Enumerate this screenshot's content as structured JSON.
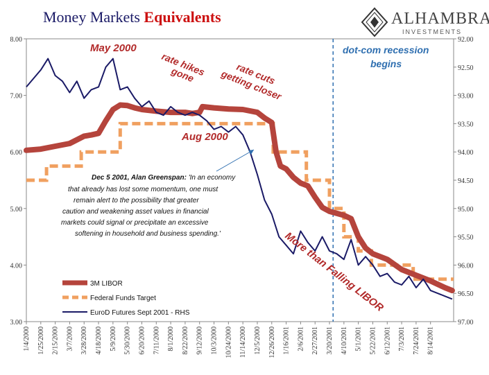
{
  "header": {
    "title_main": "Money Markets ",
    "title_accent": "Equivalents",
    "logo_brand": "ALHAMBRA",
    "logo_sub": "INVESTMENTS"
  },
  "colors": {
    "libor": "#b5443c",
    "fed": "#f0a060",
    "eurod": "#1a1a66",
    "recession_line": "#2f6fb0",
    "annotation": "#b22a2a"
  },
  "chart_data": {
    "type": "line",
    "title": "Money Markets Equivalents",
    "ylim_left": [
      3.0,
      8.0
    ],
    "ylim_right": [
      92.0,
      97.0
    ],
    "right_axis_inverted": true,
    "left_ticks": [
      "3.00",
      "4.00",
      "5.00",
      "6.00",
      "7.00",
      "8.00"
    ],
    "right_ticks": [
      "92.00",
      "92.50",
      "93.00",
      "93.50",
      "94.00",
      "94.50",
      "95.00",
      "95.50",
      "96.00",
      "96.50",
      "97.00"
    ],
    "x_tick_labels": [
      "1/4/2000",
      "1/25/2000",
      "2/15/2000",
      "3/7/2000",
      "3/28/2000",
      "4/18/2000",
      "5/9/2000",
      "5/30/2000",
      "6/20/2000",
      "7/11/2000",
      "8/1/2000",
      "8/22/2000",
      "9/12/2000",
      "10/3/2000",
      "10/24/2000",
      "11/14/2000",
      "12/5/2000",
      "12/26/2000",
      "1/16/2001",
      "2/6/2001",
      "2/27/2001",
      "3/20/2001",
      "4/10/2001",
      "5/1/2001",
      "5/22/2001",
      "6/12/2001",
      "7/3/2001",
      "7/24/2001",
      "8/14/2001"
    ],
    "x_index_range": [
      0,
      29.6
    ],
    "recession_marker_index": 21.25,
    "series": [
      {
        "name": "3M LIBOR",
        "axis": "left",
        "x": [
          0,
          1,
          2,
          3,
          4,
          4.5,
          5,
          5.5,
          6,
          6.5,
          7,
          7.5,
          8,
          9,
          10,
          11,
          11.5,
          12,
          12.2,
          13,
          14,
          15,
          16,
          16.5,
          17,
          17.3,
          17.6,
          18,
          18.5,
          19,
          19.5,
          20,
          20.5,
          21,
          22,
          22.5,
          23,
          23.5,
          24,
          25,
          26,
          27,
          28,
          29,
          29.5
        ],
        "values": [
          6.03,
          6.05,
          6.1,
          6.15,
          6.28,
          6.3,
          6.33,
          6.55,
          6.75,
          6.83,
          6.82,
          6.78,
          6.75,
          6.72,
          6.7,
          6.7,
          6.68,
          6.7,
          6.8,
          6.78,
          6.76,
          6.75,
          6.7,
          6.6,
          6.52,
          6.0,
          5.75,
          5.7,
          5.55,
          5.45,
          5.4,
          5.2,
          5.02,
          4.95,
          4.88,
          4.82,
          4.5,
          4.3,
          4.2,
          4.1,
          3.92,
          3.82,
          3.72,
          3.6,
          3.55
        ]
      },
      {
        "name": "Federal Funds Target",
        "axis": "left",
        "x": [
          0,
          1.4,
          1.4,
          3.8,
          3.8,
          6.5,
          6.5,
          17.1,
          17.1,
          19.4,
          19.4,
          21.0,
          21.0,
          22.0,
          22.0,
          23.0,
          23.0,
          23.9,
          23.9,
          26.8,
          26.8,
          29.6
        ],
        "values": [
          5.5,
          5.5,
          5.75,
          5.75,
          6.0,
          6.0,
          6.5,
          6.5,
          6.0,
          6.0,
          5.5,
          5.5,
          5.0,
          5.0,
          4.5,
          4.5,
          4.25,
          4.25,
          4.0,
          4.0,
          3.75,
          3.75
        ]
      },
      {
        "name": "EuroD Futures Sept 2001 - RHS",
        "axis": "right",
        "x": [
          0,
          0.5,
          1,
          1.5,
          2,
          2.5,
          3,
          3.5,
          4,
          4.5,
          5,
          5.5,
          6,
          6.5,
          7,
          7.5,
          8,
          8.5,
          9,
          9.5,
          10,
          10.5,
          11,
          11.5,
          12,
          12.5,
          13,
          13.5,
          14,
          14.5,
          15,
          15.5,
          16,
          16.5,
          17,
          17.5,
          18,
          18.5,
          19,
          19.5,
          20,
          20.5,
          21,
          21.5,
          22,
          22.5,
          23,
          23.5,
          24,
          24.5,
          25,
          25.5,
          26,
          26.5,
          27,
          27.5,
          28,
          28.5,
          29,
          29.5
        ],
        "values": [
          92.85,
          92.7,
          92.55,
          92.35,
          92.65,
          92.75,
          92.95,
          92.75,
          93.05,
          92.9,
          92.85,
          92.5,
          92.35,
          92.9,
          92.85,
          93.05,
          93.2,
          93.1,
          93.3,
          93.35,
          93.2,
          93.3,
          93.35,
          93.3,
          93.35,
          93.45,
          93.6,
          93.55,
          93.65,
          93.55,
          93.7,
          94.0,
          94.4,
          94.85,
          95.1,
          95.5,
          95.65,
          95.8,
          95.4,
          95.6,
          95.75,
          95.5,
          95.75,
          95.8,
          95.9,
          95.55,
          96.0,
          95.85,
          96.0,
          96.2,
          96.15,
          96.3,
          96.35,
          96.2,
          96.4,
          96.25,
          96.45,
          96.5,
          96.55,
          96.6
        ]
      }
    ],
    "annotations": {
      "may2000": "May 2000",
      "rate_hikes": "rate hikes",
      "gone": "gone",
      "rate_cuts": "rate cuts",
      "getting_closer": "getting closer",
      "aug2000": "Aug 2000",
      "dotcom_1": "dot-com recession",
      "dotcom_2": "begins",
      "falling_libor": "More than Falling LIBOR"
    },
    "quote": {
      "speaker": "Dec 5 2001, Alan Greenspan:",
      "line1": "'In an economy",
      "line2": "that already has lost some momentum, one must",
      "line3": "remain alert to the possibility that greater",
      "line4": "caution and weakening asset values in financial",
      "line5": "markets could signal or precipitate an excessive",
      "line6": "softening in household and business spending.'"
    },
    "legend": [
      "3M LIBOR",
      "Federal Funds Target",
      "EuroD Futures Sept 2001 - RHS"
    ]
  }
}
